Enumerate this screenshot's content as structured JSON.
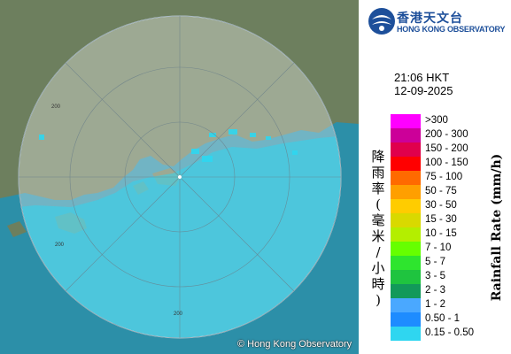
{
  "map": {
    "credit": "© Hong Kong Observatory",
    "range_ring_label": "200",
    "colors": {
      "sea": "#2c8fa8",
      "land": "#6d7f5e",
      "coverage": "#ffffff",
      "echo_light": "#2fd6f0"
    }
  },
  "logo": {
    "name_zh": "香港天文台",
    "name_en": "HONG KONG OBSERVATORY",
    "icon": "hko-logo-icon"
  },
  "time": "21:06 HKT",
  "date": "12-09-2025",
  "legend": {
    "title_en": "Rainfall Rate (mm/h)",
    "title_zh": [
      "降",
      "雨",
      "率",
      "(",
      "毫",
      "米",
      "/",
      "小",
      "時",
      ")"
    ],
    "items": [
      {
        "label": ">300",
        "color": "#ff00ff"
      },
      {
        "label": "200 - 300",
        "color": "#cc0099"
      },
      {
        "label": "150 - 200",
        "color": "#e0004c"
      },
      {
        "label": "100 - 150",
        "color": "#ff0000"
      },
      {
        "label": "75 - 100",
        "color": "#ff6a00"
      },
      {
        "label": "50 - 75",
        "color": "#ff9f00"
      },
      {
        "label": "30 - 50",
        "color": "#ffcc00"
      },
      {
        "label": "15 - 30",
        "color": "#d9d900"
      },
      {
        "label": "10 - 15",
        "color": "#b4ee00"
      },
      {
        "label": "7 - 10",
        "color": "#66ff00"
      },
      {
        "label": "5 - 7",
        "color": "#2ee52e"
      },
      {
        "label": "3 - 5",
        "color": "#1fc43f"
      },
      {
        "label": "2 - 3",
        "color": "#12995a"
      },
      {
        "label": "1 - 2",
        "color": "#4aa8ff"
      },
      {
        "label": "0.50 - 1",
        "color": "#1e8cff"
      },
      {
        "label": "0.15 - 0.50",
        "color": "#2fd6f0"
      }
    ]
  }
}
